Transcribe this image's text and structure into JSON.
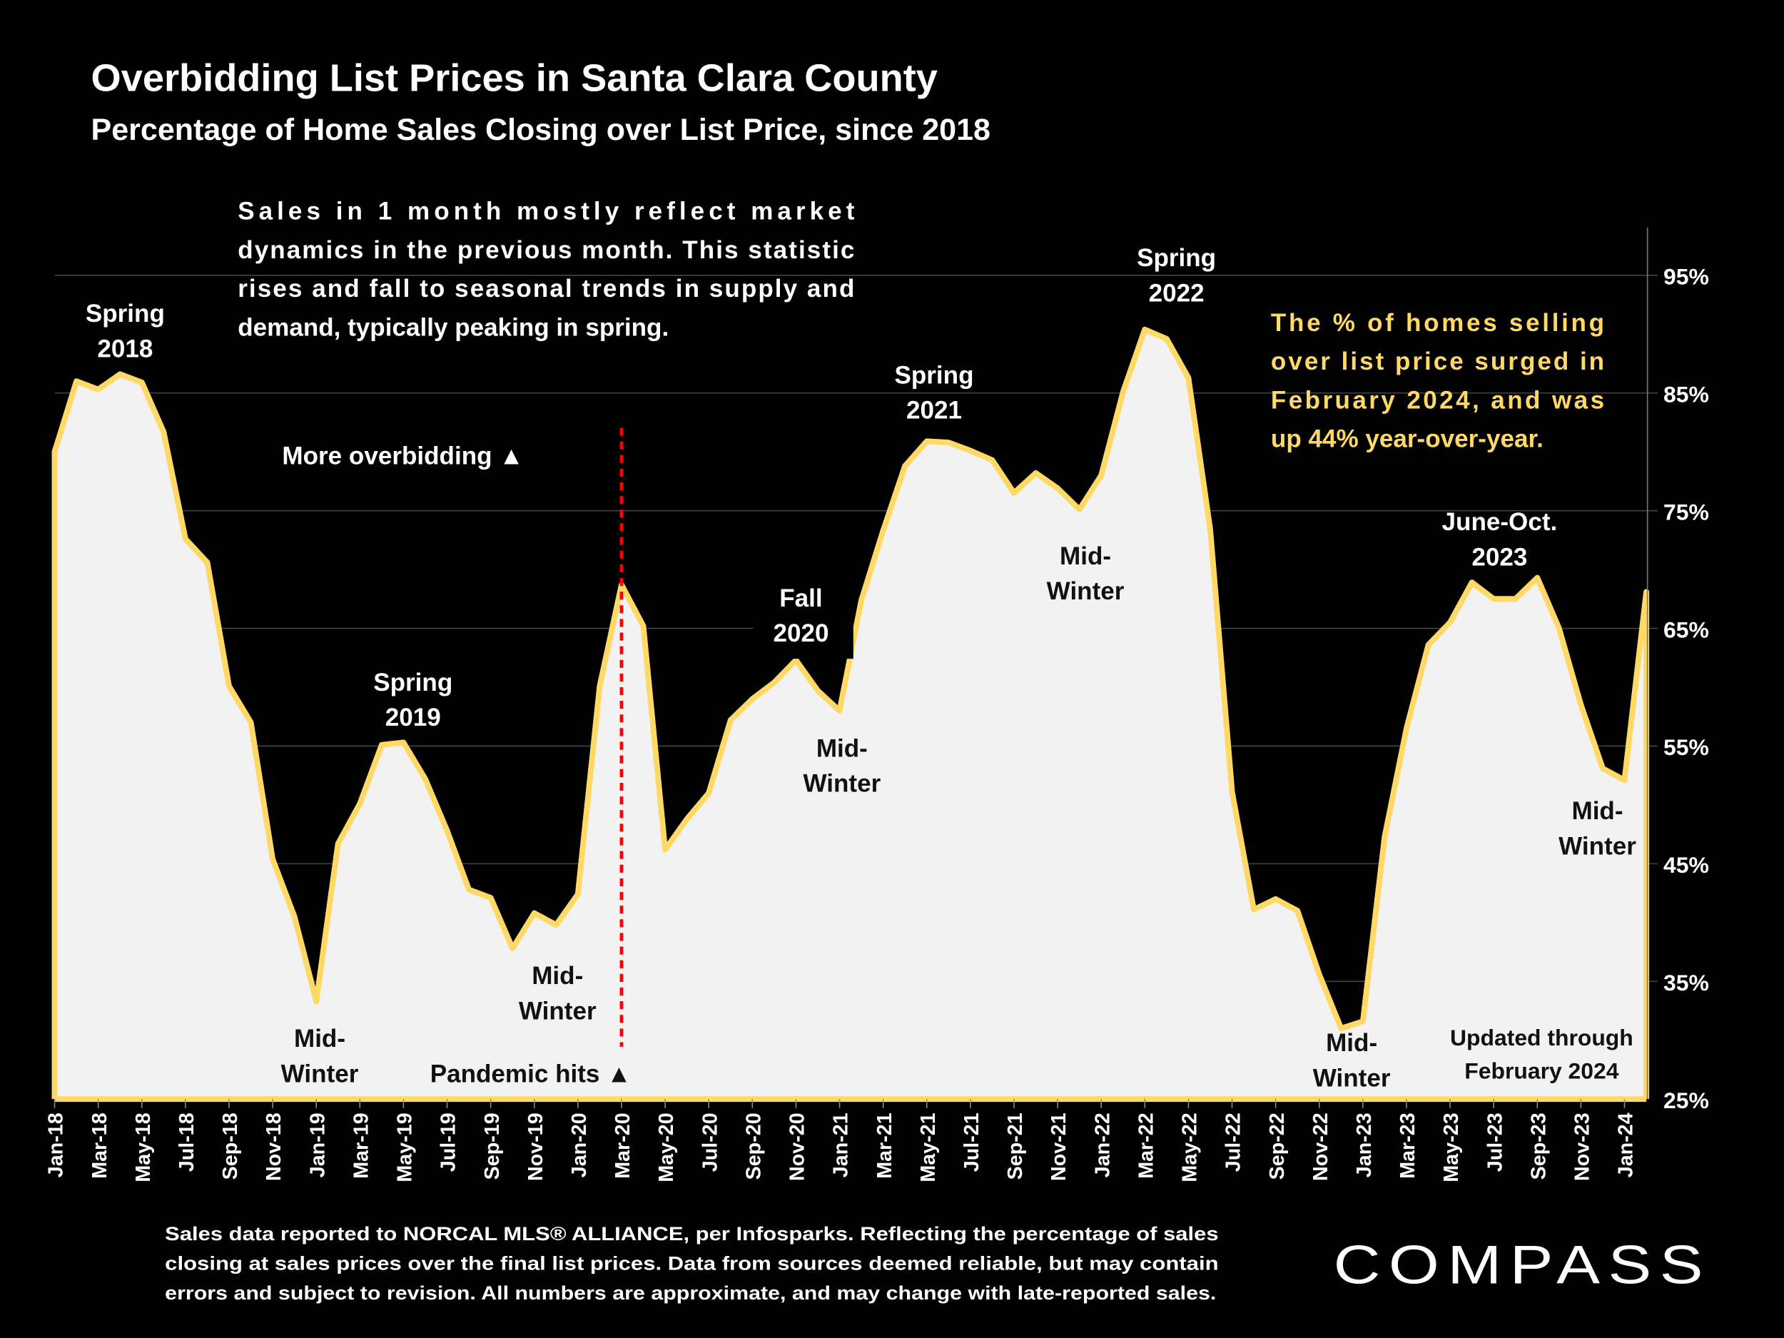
{
  "chart_data": {
    "type": "area",
    "title": "Overbidding List Prices in Santa Clara County",
    "subtitle": "Percentage of Home Sales Closing over List Price, since 2018",
    "xlabel": "",
    "ylabel": "",
    "ylim": [
      25,
      95
    ],
    "yticks": [
      "25%",
      "35%",
      "45%",
      "55%",
      "65%",
      "75%",
      "85%",
      "95%"
    ],
    "ytick_values": [
      25,
      35,
      45,
      55,
      65,
      75,
      85,
      95
    ],
    "grid": true,
    "x": [
      "Jan-18",
      "Feb-18",
      "Mar-18",
      "Apr-18",
      "May-18",
      "Jun-18",
      "Jul-18",
      "Aug-18",
      "Sep-18",
      "Oct-18",
      "Nov-18",
      "Dec-18",
      "Jan-19",
      "Feb-19",
      "Mar-19",
      "Apr-19",
      "May-19",
      "Jun-19",
      "Jul-19",
      "Aug-19",
      "Sep-19",
      "Oct-19",
      "Nov-19",
      "Dec-19",
      "Jan-20",
      "Feb-20",
      "Mar-20",
      "Apr-20",
      "May-20",
      "Jun-20",
      "Jul-20",
      "Aug-20",
      "Sep-20",
      "Oct-20",
      "Nov-20",
      "Dec-20",
      "Jan-21",
      "Feb-21",
      "Mar-21",
      "Apr-21",
      "May-21",
      "Jun-21",
      "Jul-21",
      "Aug-21",
      "Sep-21",
      "Oct-21",
      "Nov-21",
      "Dec-21",
      "Jan-22",
      "Feb-22",
      "Mar-22",
      "Apr-22",
      "May-22",
      "Jun-22",
      "Jul-22",
      "Aug-22",
      "Sep-22",
      "Oct-22",
      "Nov-22",
      "Dec-22",
      "Jan-23",
      "Feb-23",
      "Mar-23",
      "Apr-23",
      "May-23",
      "Jun-23",
      "Jul-23",
      "Aug-23",
      "Sep-23",
      "Oct-23",
      "Nov-23",
      "Dec-23",
      "Jan-24",
      "Feb-24"
    ],
    "xtick_labels": [
      "Jan-18",
      "Mar-18",
      "May-18",
      "Jul-18",
      "Sep-18",
      "Nov-18",
      "Jan-19",
      "Mar-19",
      "May-19",
      "Jul-19",
      "Sep-19",
      "Nov-19",
      "Jan-20",
      "Mar-20",
      "May-20",
      "Jul-20",
      "Sep-20",
      "Nov-20",
      "Jan-21",
      "Mar-21",
      "May-21",
      "Jul-21",
      "Sep-21",
      "Nov-21",
      "Jan-22",
      "Mar-22",
      "May-22",
      "Jul-22",
      "Sep-22",
      "Nov-22",
      "Jan-23",
      "Mar-23",
      "May-23",
      "Jul-23",
      "Sep-23",
      "Nov-23",
      "Jan-24"
    ],
    "series": [
      {
        "name": "% of sales closing over list price",
        "color": "#FFD966",
        "fill": "#F2F2F2",
        "values": [
          80,
          86,
          85.3,
          86.6,
          85.9,
          81.7,
          72.6,
          70.6,
          60.1,
          57,
          45.4,
          40.5,
          33.3,
          46.7,
          50.1,
          55.1,
          55.3,
          52.2,
          47.8,
          42.8,
          42.1,
          37.8,
          40.8,
          39.8,
          42.4,
          60.1,
          68.7,
          65.2,
          46.2,
          48.8,
          51,
          57.2,
          59,
          60.4,
          62.3,
          59.7,
          58,
          67.4,
          73.3,
          78.8,
          80.9,
          80.8,
          80.1,
          79.3,
          76.5,
          78.2,
          76.9,
          75.1,
          78,
          85.1,
          90.4,
          89.6,
          86.3,
          73.4,
          51.1,
          41.1,
          42,
          41,
          35.6,
          31,
          31.6,
          47.3,
          56.5,
          63.6,
          65.5,
          68.9,
          67.5,
          67.5,
          69.3,
          65,
          58.5,
          53.1,
          52.1,
          68.1
        ]
      }
    ],
    "legend": "none",
    "marker_line": {
      "at": "Mar-20",
      "color": "#FF0000",
      "label": "Pandemic hits ▲"
    },
    "annotations": [
      {
        "id": "spring2018",
        "lines": [
          "Spring",
          "2018"
        ],
        "color": "white"
      },
      {
        "id": "midwinter2019",
        "lines": [
          "Mid-",
          "Winter"
        ],
        "color": "dark"
      },
      {
        "id": "spring2019",
        "lines": [
          "Spring",
          "2019"
        ],
        "color": "white"
      },
      {
        "id": "midwinter2020",
        "lines": [
          "Mid-",
          "Winter"
        ],
        "color": "dark"
      },
      {
        "id": "fall2020",
        "lines": [
          "Fall",
          "2020"
        ],
        "color": "white"
      },
      {
        "id": "midwinter2021",
        "lines": [
          "Mid-",
          "Winter"
        ],
        "color": "dark"
      },
      {
        "id": "spring2021",
        "lines": [
          "Spring",
          "2021"
        ],
        "color": "white"
      },
      {
        "id": "midwinter2022",
        "lines": [
          "Mid-",
          "Winter"
        ],
        "color": "dark"
      },
      {
        "id": "spring2022",
        "lines": [
          "Spring",
          "2022"
        ],
        "color": "white"
      },
      {
        "id": "midwinter2023",
        "lines": [
          "Mid-",
          "Winter"
        ],
        "color": "dark"
      },
      {
        "id": "juneoct2023",
        "lines": [
          "June-Oct.",
          "2023"
        ],
        "color": "white"
      },
      {
        "id": "midwinter2024",
        "lines": [
          "Mid-",
          "Winter"
        ],
        "color": "dark"
      },
      {
        "id": "updated",
        "lines": [
          "Updated through",
          "February 2024"
        ],
        "color": "dark"
      }
    ],
    "more_overbidding": "More overbidding ▲",
    "note_lines": [
      "Sales in 1 month mostly reflect market",
      "dynamics in the previous month. This statistic",
      "rises and fall to seasonal trends in supply and",
      "demand, typically peaking in spring."
    ],
    "highlight_lines": [
      "The % of homes selling",
      "over list price surged in",
      "February 2024, and was",
      "up 44% year-over-year."
    ]
  },
  "footer": {
    "source_lines": [
      "Sales data reported to NORCAL MLS® ALLIANCE, per Infosparks. Reflecting the percentage of sales",
      "closing at sales prices over the final list prices. Data from sources deemed reliable, but may contain",
      "errors and subject to revision. All numbers are approximate, and may change with late-reported sales."
    ],
    "brand": "COMPASS"
  },
  "colors": {
    "background": "#000000",
    "line": "#FFD966",
    "area": "#F2F2F2",
    "grid": "#3a3a3a",
    "highlight": "#FFD966",
    "marker": "#E00000"
  }
}
